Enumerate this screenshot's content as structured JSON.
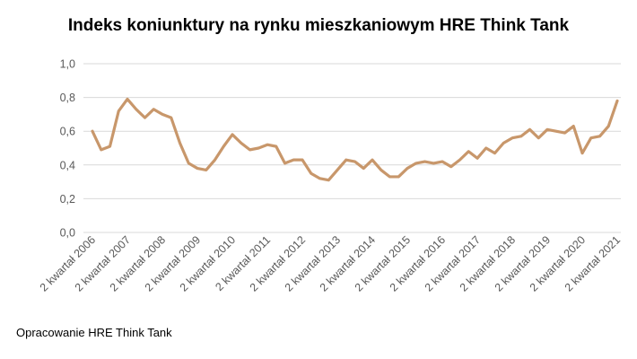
{
  "title": "Indeks koniunktury na rynku mieszkaniowym HRE Think Tank",
  "footnote": "Opracowanie HRE Think Tank",
  "colors": {
    "line": "#c8976b",
    "grid": "#d9d9d9",
    "axis_text": "#595959"
  },
  "chart_data": {
    "type": "line",
    "title": "Indeks koniunktury na rynku mieszkaniowym HRE Think Tank",
    "xlabel": "",
    "ylabel": "",
    "ylim": [
      0,
      1.0
    ],
    "yticks": [
      "0,0",
      "0,2",
      "0,4",
      "0,6",
      "0,8",
      "1,0"
    ],
    "ytick_values": [
      0,
      0.2,
      0.4,
      0.6,
      0.8,
      1.0
    ],
    "grid": true,
    "legend": "none",
    "x_tick_labels": [
      "2 kwartał 2006",
      "2 kwartał 2007",
      "2 kwartał 2008",
      "2 kwartał 2009",
      "2 kwartał 2010",
      "2 kwartał 2011",
      "2 kwartał 2012",
      "2 kwartał 2013",
      "2 kwartał 2014",
      "2 kwartał 2015",
      "2 kwartał 2016",
      "2 kwartał 2017",
      "2 kwartał 2018",
      "2 kwartał 2019",
      "2 kwartał 2020",
      "2 kwartał 2021"
    ],
    "series": [
      {
        "values": [
          0.6,
          0.49,
          0.51,
          0.72,
          0.79,
          0.73,
          0.68,
          0.73,
          0.7,
          0.68,
          0.53,
          0.41,
          0.38,
          0.37,
          0.43,
          0.51,
          0.58,
          0.53,
          0.49,
          0.5,
          0.52,
          0.51,
          0.41,
          0.43,
          0.43,
          0.35,
          0.32,
          0.31,
          0.37,
          0.43,
          0.42,
          0.38,
          0.43,
          0.37,
          0.33,
          0.33,
          0.38,
          0.41,
          0.42,
          0.41,
          0.42,
          0.39,
          0.43,
          0.48,
          0.44,
          0.5,
          0.47,
          0.53,
          0.56,
          0.57,
          0.61,
          0.56,
          0.61,
          0.6,
          0.59,
          0.63,
          0.47,
          0.56,
          0.57,
          0.63,
          0.78
        ]
      }
    ]
  }
}
